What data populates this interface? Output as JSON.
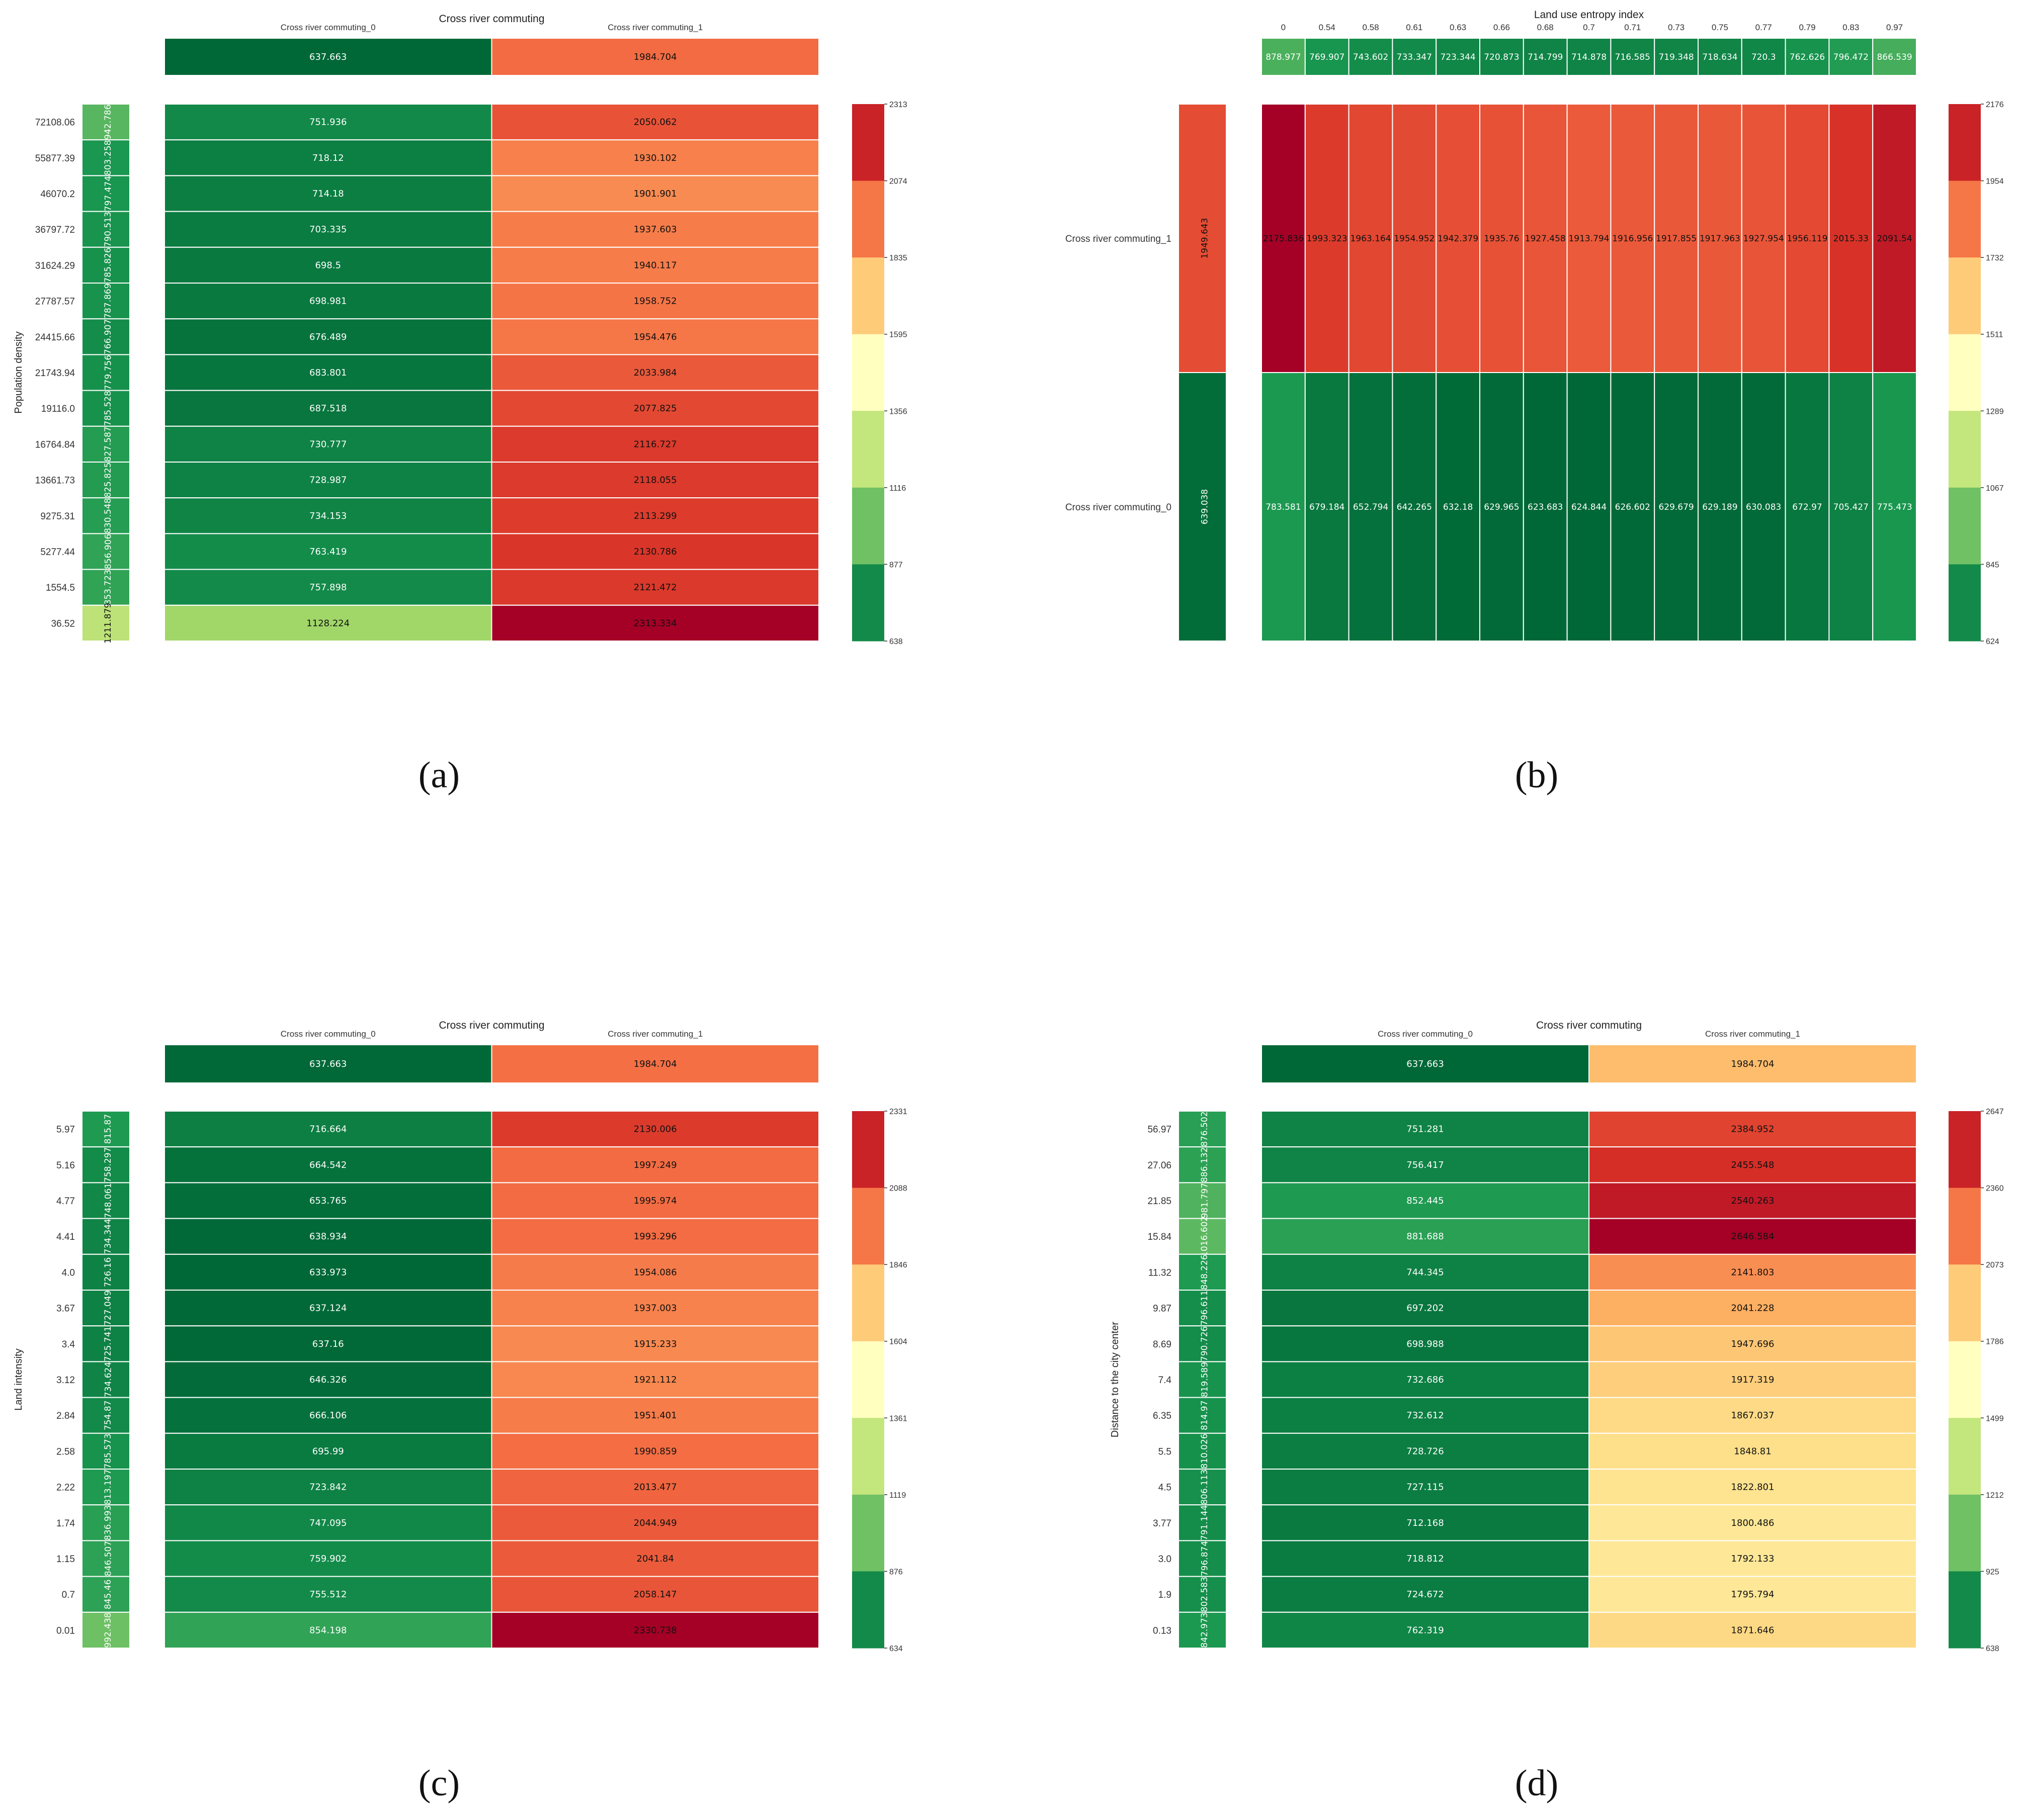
{
  "figure": {
    "panel_labels": [
      "(a)",
      "(b)",
      "(c)",
      "(d)"
    ]
  },
  "colors": {
    "scale": [
      "#006837",
      "#1a9850",
      "#66bd63",
      "#a6d96a",
      "#d9ef8b",
      "#ffffbf",
      "#fee08b",
      "#fdae61",
      "#f46d43",
      "#d73027",
      "#a50026"
    ],
    "grid_line": "#ffffff",
    "text": "#222222"
  },
  "chart_data": [
    {
      "id": "a",
      "type": "heatmap",
      "title": "Cross river commuting",
      "col_labels": [
        "Cross river commuting_0",
        "Cross river commuting_1"
      ],
      "col_marginal": [
        "637.663",
        "1984.704"
      ],
      "ylabel": "Population density",
      "row_labels": [
        "72108.06",
        "55877.39",
        "46070.2",
        "36797.72",
        "31624.29",
        "27787.57",
        "24415.66",
        "21743.94",
        "19116.0",
        "16764.84",
        "13661.73",
        "9275.31",
        "5277.44",
        "1554.5",
        "36.52"
      ],
      "row_marginal": [
        "942.786",
        "803.258",
        "797.474",
        "790.513",
        "785.826",
        "787.869",
        "766.907",
        "779.756",
        "785.528",
        "827.587",
        "825.825",
        "830.548",
        "856.906",
        "853.723",
        "1211.879"
      ],
      "values": [
        [
          "751.936",
          "2050.062"
        ],
        [
          "718.12",
          "1930.102"
        ],
        [
          "714.18",
          "1901.901"
        ],
        [
          "703.335",
          "1937.603"
        ],
        [
          "698.5",
          "1940.117"
        ],
        [
          "698.981",
          "1958.752"
        ],
        [
          "676.489",
          "1954.476"
        ],
        [
          "683.801",
          "2033.984"
        ],
        [
          "687.518",
          "2077.825"
        ],
        [
          "730.777",
          "2116.727"
        ],
        [
          "728.987",
          "2118.055"
        ],
        [
          "734.153",
          "2113.299"
        ],
        [
          "763.419",
          "2130.786"
        ],
        [
          "757.898",
          "2121.472"
        ],
        [
          "1128.224",
          "2313.334"
        ]
      ],
      "color_range": [
        638,
        2313
      ],
      "colorbar_ticks": [
        "2313",
        "2074",
        "1835",
        "1595",
        "1356",
        "1116",
        "877",
        "638"
      ]
    },
    {
      "id": "b",
      "type": "heatmap",
      "title": "Land use entropy index",
      "col_labels": [
        "0",
        "0.54",
        "0.58",
        "0.61",
        "0.63",
        "0.66",
        "0.68",
        "0.7",
        "0.71",
        "0.73",
        "0.75",
        "0.77",
        "0.79",
        "0.83",
        "0.97"
      ],
      "col_marginal": [
        "878.977",
        "769.907",
        "743.602",
        "733.347",
        "723.344",
        "720.873",
        "714.799",
        "714.878",
        "716.585",
        "719.348",
        "718.634",
        "720.3",
        "762.626",
        "796.472",
        "866.539"
      ],
      "ylabel": "",
      "row_labels": [
        "Cross river commuting_1",
        "Cross river commuting_0"
      ],
      "row_marginal": [
        "1949.643",
        "639.038"
      ],
      "values": [
        [
          "2175.836",
          "1993.323",
          "1963.164",
          "1954.952",
          "1942.379",
          "1935.76",
          "1927.458",
          "1913.794",
          "1916.956",
          "1917.855",
          "1917.963",
          "1927.954",
          "1956.119",
          "2015.33",
          "2091.54"
        ],
        [
          "783.581",
          "679.184",
          "652.794",
          "642.265",
          "632.18",
          "629.965",
          "623.683",
          "624.844",
          "626.602",
          "629.679",
          "629.189",
          "630.083",
          "672.97",
          "705.427",
          "775.473"
        ]
      ],
      "color_range": [
        624,
        2176
      ],
      "colorbar_ticks": [
        "2176",
        "1954",
        "1732",
        "1511",
        "1289",
        "1067",
        "845",
        "624"
      ]
    },
    {
      "id": "c",
      "type": "heatmap",
      "title": "Cross river commuting",
      "col_labels": [
        "Cross river commuting_0",
        "Cross river commuting_1"
      ],
      "col_marginal": [
        "637.663",
        "1984.704"
      ],
      "ylabel": "Land intensity",
      "row_labels": [
        "5.97",
        "5.16",
        "4.77",
        "4.41",
        "4.0",
        "3.67",
        "3.4",
        "3.12",
        "2.84",
        "2.58",
        "2.22",
        "1.74",
        "1.15",
        "0.7",
        "0.01"
      ],
      "row_marginal": [
        "815.87",
        "758.297",
        "748.061",
        "734.344",
        "726.16",
        "727.049",
        "725.741",
        "734.624",
        "754.87",
        "785.573",
        "813.197",
        "836.993",
        "846.507",
        "845.46",
        "992.438"
      ],
      "values": [
        [
          "716.664",
          "2130.006"
        ],
        [
          "664.542",
          "1997.249"
        ],
        [
          "653.765",
          "1995.974"
        ],
        [
          "638.934",
          "1993.296"
        ],
        [
          "633.973",
          "1954.086"
        ],
        [
          "637.124",
          "1937.003"
        ],
        [
          "637.16",
          "1915.233"
        ],
        [
          "646.326",
          "1921.112"
        ],
        [
          "666.106",
          "1951.401"
        ],
        [
          "695.99",
          "1990.859"
        ],
        [
          "723.842",
          "2013.477"
        ],
        [
          "747.095",
          "2044.949"
        ],
        [
          "759.902",
          "2041.84"
        ],
        [
          "755.512",
          "2058.147"
        ],
        [
          "854.198",
          "2330.738"
        ]
      ],
      "color_range": [
        634,
        2331
      ],
      "colorbar_ticks": [
        "2331",
        "2088",
        "1846",
        "1604",
        "1361",
        "1119",
        "876",
        "634"
      ]
    },
    {
      "id": "d",
      "type": "heatmap",
      "title": "Cross river commuting",
      "col_labels": [
        "Cross river commuting_0",
        "Cross river commuting_1"
      ],
      "col_marginal": [
        "637.663",
        "1984.704"
      ],
      "ylabel": "Distance to the city center",
      "row_labels": [
        "56.97",
        "27.06",
        "21.85",
        "15.84",
        "11.32",
        "9.87",
        "8.69",
        "7.4",
        "6.35",
        "5.5",
        "4.5",
        "3.77",
        "3.0",
        "1.9",
        "0.13"
      ],
      "row_marginal": [
        "876.502",
        "886.132",
        "981.797",
        "1016.602",
        "848.226",
        "796.611",
        "790.726",
        "819.589",
        "814.97",
        "810.026",
        "806.113",
        "791.144",
        "796.874",
        "802.583",
        "842.973"
      ],
      "values": [
        [
          "751.281",
          "2384.952"
        ],
        [
          "756.417",
          "2455.548"
        ],
        [
          "852.445",
          "2540.263"
        ],
        [
          "881.688",
          "2646.584"
        ],
        [
          "744.345",
          "2141.803"
        ],
        [
          "697.202",
          "2041.228"
        ],
        [
          "698.988",
          "1947.696"
        ],
        [
          "732.686",
          "1917.319"
        ],
        [
          "732.612",
          "1867.037"
        ],
        [
          "728.726",
          "1848.81"
        ],
        [
          "727.115",
          "1822.801"
        ],
        [
          "712.168",
          "1800.486"
        ],
        [
          "718.812",
          "1792.133"
        ],
        [
          "724.672",
          "1795.794"
        ],
        [
          "762.319",
          "1871.646"
        ]
      ],
      "color_range": [
        638,
        2647
      ],
      "colorbar_ticks": [
        "2647",
        "2360",
        "2073",
        "1786",
        "1499",
        "1212",
        "925",
        "638"
      ]
    }
  ]
}
